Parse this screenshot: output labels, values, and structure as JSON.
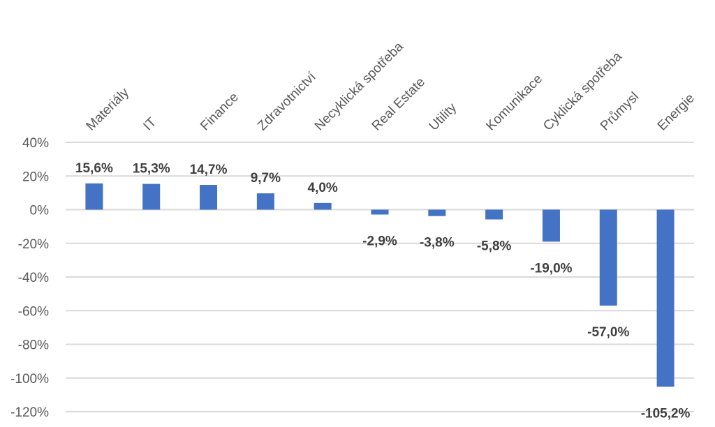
{
  "chart_data": {
    "type": "bar",
    "categories": [
      "Materiály",
      "IT",
      "Finance",
      "Zdravotnictví",
      "Necyklická spotřeba",
      "Real Estate",
      "Utility",
      "Komunikace",
      "Cyklická spotřeba",
      "Průmysl",
      "Energie"
    ],
    "values": [
      15.6,
      15.3,
      14.7,
      9.7,
      4.0,
      -2.9,
      -3.8,
      -5.8,
      -19.0,
      -57.0,
      -105.2
    ],
    "data_labels": [
      "15,6%",
      "15,3%",
      "14,7%",
      "9,7%",
      "4,0%",
      "-2,9%",
      "-3,8%",
      "-5,8%",
      "-19,0%",
      "-57,0%",
      "-105,2%"
    ],
    "y_ticks": [
      40,
      20,
      0,
      -20,
      -40,
      -60,
      -80,
      -100,
      -120
    ],
    "y_tick_labels": [
      "40%",
      "20%",
      "0%",
      "-20%",
      "-40%",
      "-60%",
      "-80%",
      "-100%",
      "-120%"
    ],
    "ylim": [
      -120,
      40
    ],
    "grid": true,
    "category_labels_position": "top, rotated",
    "colors": {
      "bar": "#4472C4",
      "grid": "#D9D9D9",
      "tick_text": "#595959",
      "label_text": "#404040"
    }
  }
}
